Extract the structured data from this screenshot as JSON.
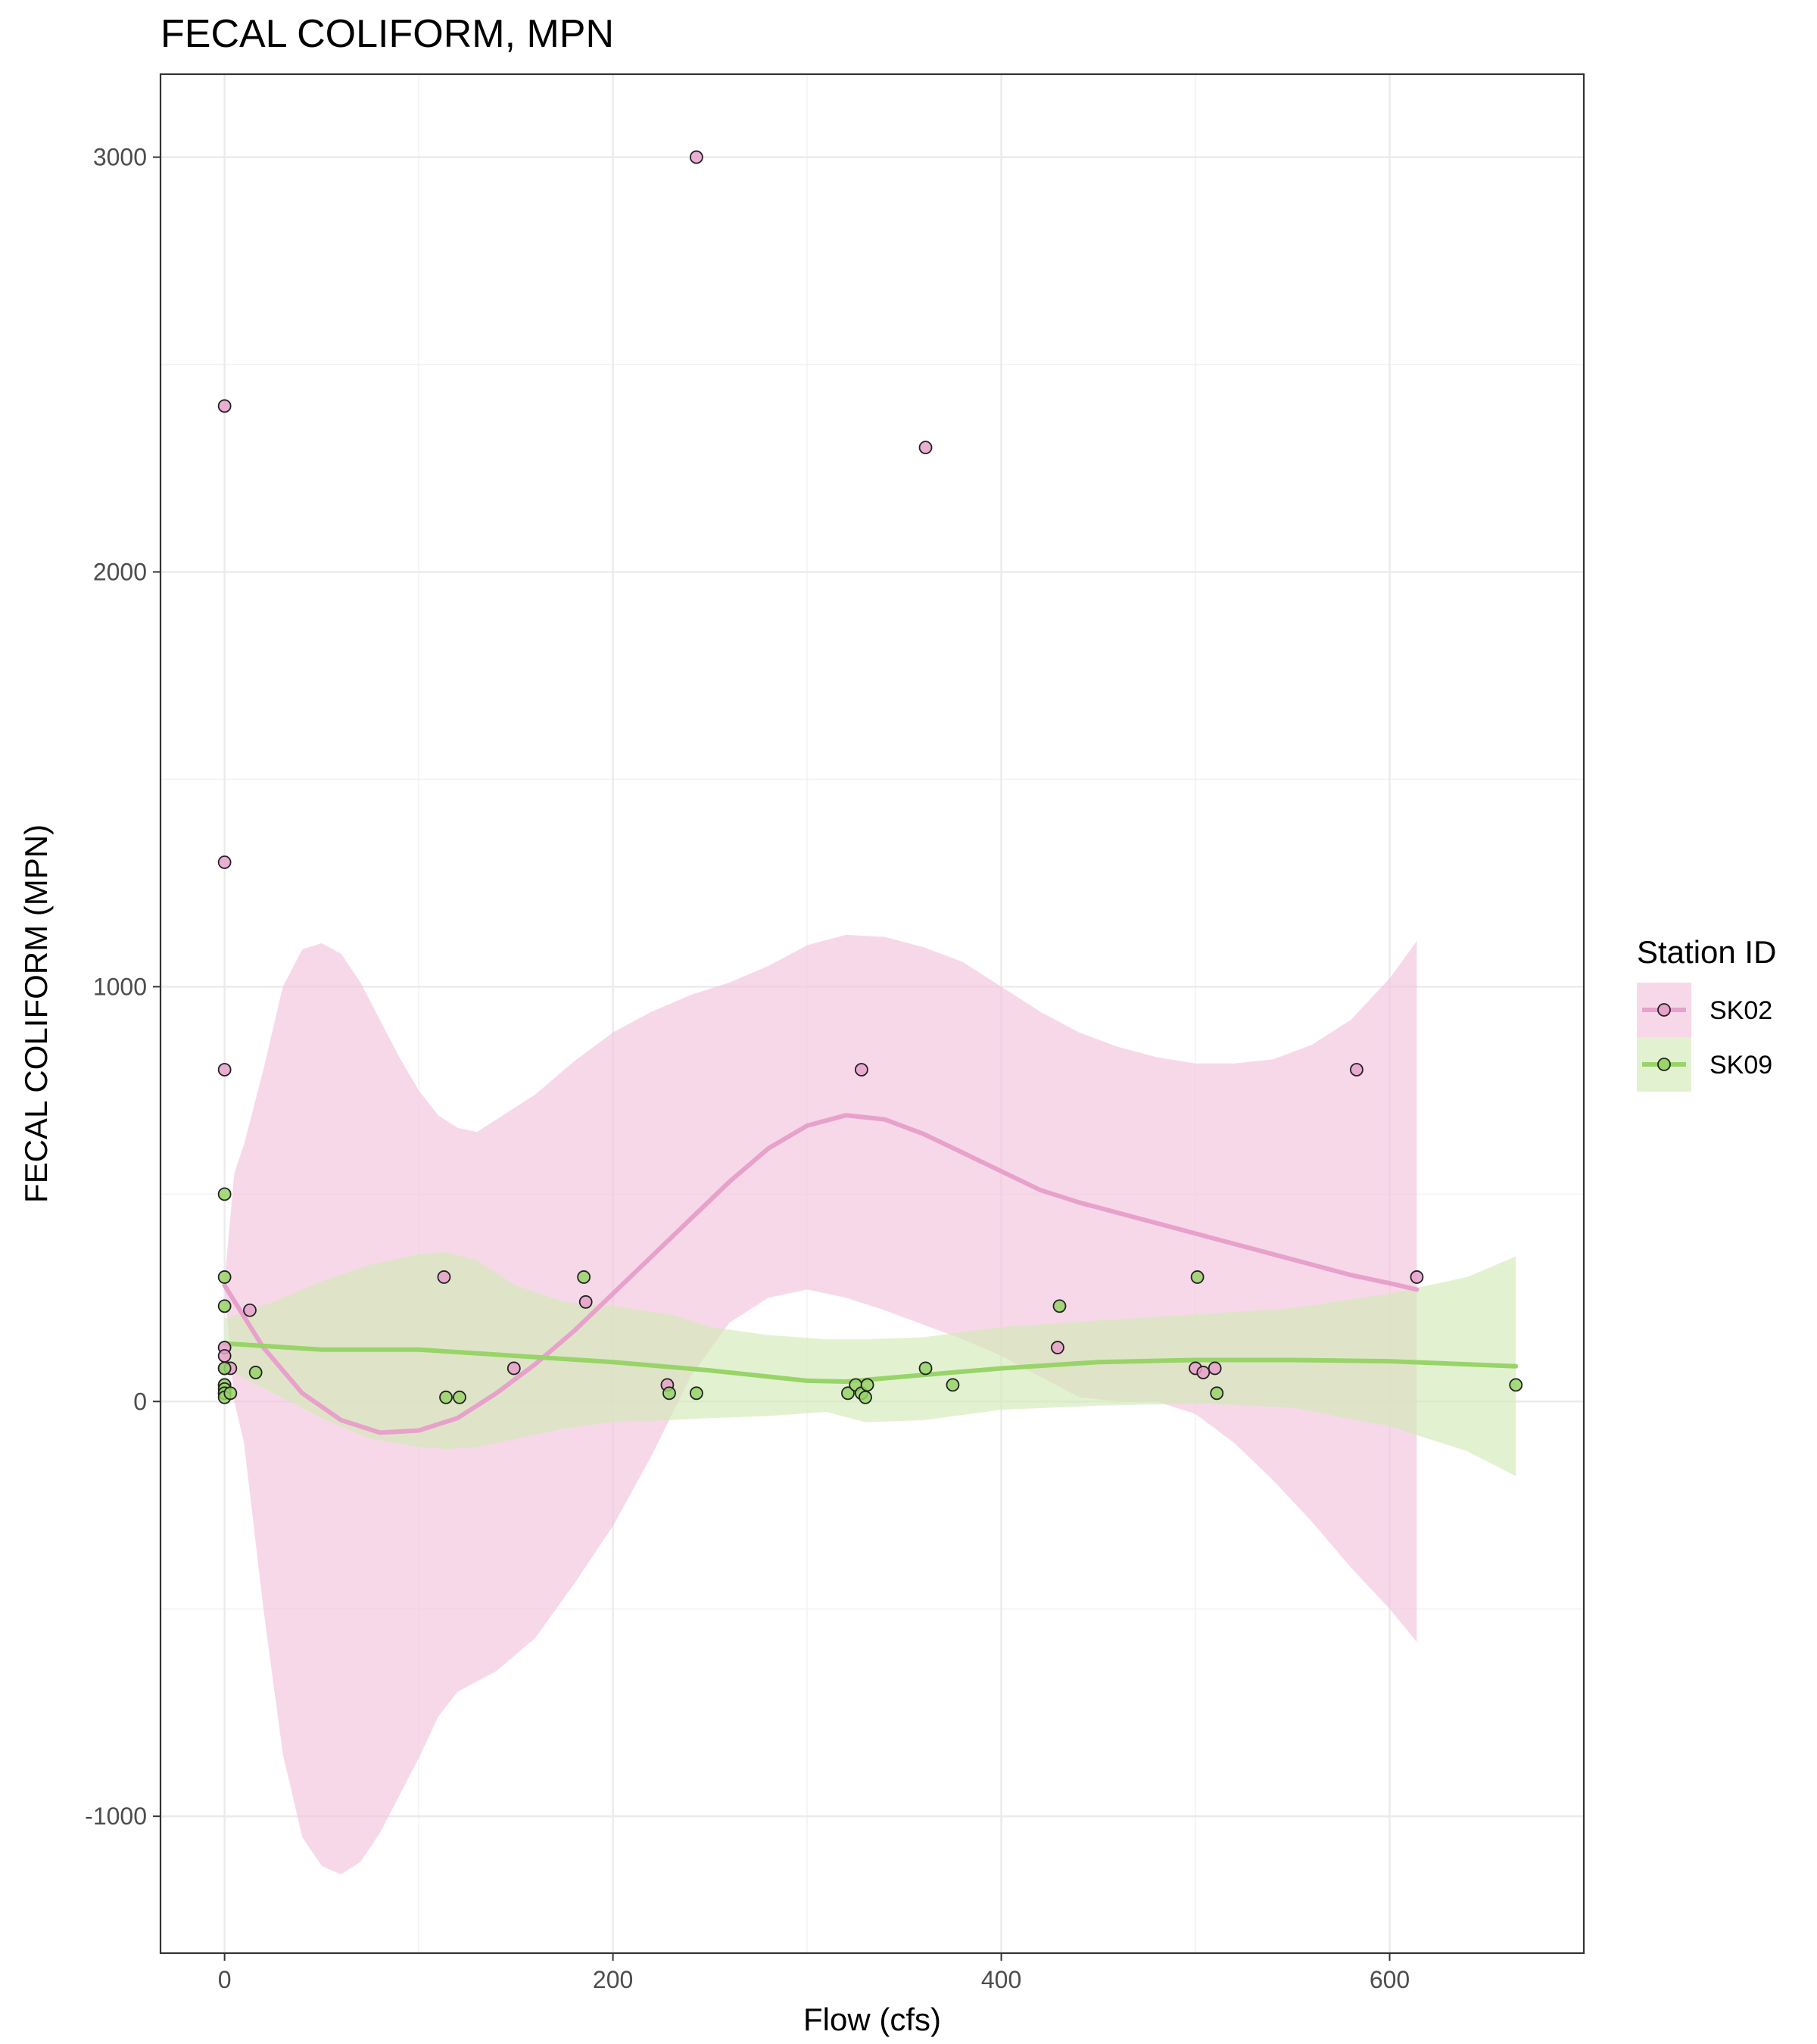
{
  "chart_data": {
    "type": "scatter",
    "title": "FECAL COLIFORM, MPN",
    "xlabel": "Flow (cfs)",
    "ylabel": "FECAL COLIFORM (MPN)",
    "xlim": [
      -33,
      700
    ],
    "ylim": [
      -1330,
      3200
    ],
    "x_ticks": [
      0,
      200,
      400,
      600
    ],
    "y_ticks": [
      -1000,
      0,
      1000,
      2000,
      3000
    ],
    "x_tick_labels": [
      "0",
      "200",
      "400",
      "600"
    ],
    "y_tick_labels": [
      "-1000",
      "0",
      "1000",
      "2000",
      "3000"
    ],
    "grid": true,
    "legend": {
      "title": "Station ID",
      "position": "right"
    },
    "series": [
      {
        "name": "SK02",
        "color": "#e7a1cb",
        "band_color": "#f2c3dd",
        "points": [
          [
            0,
            2400
          ],
          [
            0,
            1300
          ],
          [
            0,
            800
          ],
          [
            0,
            130
          ],
          [
            0,
            110
          ],
          [
            0,
            80
          ],
          [
            0,
            40
          ],
          [
            0,
            20
          ],
          [
            3,
            80
          ],
          [
            13,
            220
          ],
          [
            113,
            300
          ],
          [
            149,
            80
          ],
          [
            186,
            240
          ],
          [
            228,
            40
          ],
          [
            243,
            3000
          ],
          [
            328,
            800
          ],
          [
            361,
            2300
          ],
          [
            429,
            130
          ],
          [
            500,
            80
          ],
          [
            504,
            70
          ],
          [
            510,
            80
          ],
          [
            583,
            800
          ],
          [
            614,
            300
          ]
        ],
        "smooth": [
          [
            0,
            280
          ],
          [
            20,
            130
          ],
          [
            40,
            20
          ],
          [
            60,
            -45
          ],
          [
            80,
            -75
          ],
          [
            100,
            -70
          ],
          [
            120,
            -40
          ],
          [
            140,
            20
          ],
          [
            160,
            90
          ],
          [
            180,
            170
          ],
          [
            200,
            260
          ],
          [
            220,
            350
          ],
          [
            240,
            440
          ],
          [
            260,
            530
          ],
          [
            280,
            610
          ],
          [
            300,
            665
          ],
          [
            320,
            690
          ],
          [
            340,
            680
          ],
          [
            360,
            645
          ],
          [
            380,
            600
          ],
          [
            400,
            555
          ],
          [
            420,
            510
          ],
          [
            440,
            480
          ],
          [
            460,
            455
          ],
          [
            480,
            430
          ],
          [
            500,
            405
          ],
          [
            520,
            380
          ],
          [
            540,
            355
          ],
          [
            560,
            330
          ],
          [
            580,
            305
          ],
          [
            600,
            285
          ],
          [
            614,
            270
          ]
        ],
        "upper": [
          [
            0,
            290
          ],
          [
            5,
            550
          ],
          [
            10,
            620
          ],
          [
            20,
            800
          ],
          [
            30,
            1000
          ],
          [
            40,
            1090
          ],
          [
            50,
            1105
          ],
          [
            60,
            1080
          ],
          [
            70,
            1010
          ],
          [
            80,
            920
          ],
          [
            90,
            830
          ],
          [
            100,
            750
          ],
          [
            110,
            690
          ],
          [
            120,
            660
          ],
          [
            130,
            650
          ],
          [
            140,
            680
          ],
          [
            160,
            740
          ],
          [
            180,
            820
          ],
          [
            200,
            890
          ],
          [
            220,
            940
          ],
          [
            240,
            980
          ],
          [
            260,
            1010
          ],
          [
            280,
            1050
          ],
          [
            300,
            1100
          ],
          [
            320,
            1125
          ],
          [
            340,
            1120
          ],
          [
            360,
            1095
          ],
          [
            380,
            1060
          ],
          [
            400,
            1000
          ],
          [
            420,
            940
          ],
          [
            440,
            890
          ],
          [
            460,
            855
          ],
          [
            480,
            830
          ],
          [
            500,
            815
          ],
          [
            520,
            815
          ],
          [
            540,
            825
          ],
          [
            560,
            860
          ],
          [
            580,
            920
          ],
          [
            600,
            1020
          ],
          [
            614,
            1110
          ]
        ],
        "lower": [
          [
            0,
            270
          ],
          [
            5,
            0
          ],
          [
            10,
            -100
          ],
          [
            20,
            -500
          ],
          [
            30,
            -850
          ],
          [
            40,
            -1050
          ],
          [
            50,
            -1120
          ],
          [
            60,
            -1140
          ],
          [
            70,
            -1110
          ],
          [
            80,
            -1040
          ],
          [
            90,
            -950
          ],
          [
            100,
            -860
          ],
          [
            110,
            -760
          ],
          [
            120,
            -700
          ],
          [
            140,
            -650
          ],
          [
            160,
            -570
          ],
          [
            180,
            -440
          ],
          [
            200,
            -300
          ],
          [
            220,
            -130
          ],
          [
            240,
            60
          ],
          [
            260,
            190
          ],
          [
            280,
            250
          ],
          [
            300,
            270
          ],
          [
            320,
            250
          ],
          [
            340,
            220
          ],
          [
            360,
            185
          ],
          [
            380,
            150
          ],
          [
            400,
            110
          ],
          [
            420,
            60
          ],
          [
            440,
            10
          ],
          [
            460,
            0
          ],
          [
            480,
            0
          ],
          [
            500,
            -30
          ],
          [
            520,
            -100
          ],
          [
            540,
            -190
          ],
          [
            560,
            -290
          ],
          [
            580,
            -400
          ],
          [
            600,
            -500
          ],
          [
            614,
            -580
          ]
        ]
      },
      {
        "name": "SK09",
        "color": "#98d468",
        "band_color": "#d2ebb9",
        "points": [
          [
            0,
            500
          ],
          [
            0,
            300
          ],
          [
            0,
            230
          ],
          [
            0,
            80
          ],
          [
            0,
            40
          ],
          [
            0,
            30
          ],
          [
            0,
            20
          ],
          [
            0,
            10
          ],
          [
            3,
            20
          ],
          [
            16,
            70
          ],
          [
            114,
            10
          ],
          [
            121,
            10
          ],
          [
            185,
            300
          ],
          [
            229,
            20
          ],
          [
            243,
            20
          ],
          [
            321,
            20
          ],
          [
            325,
            40
          ],
          [
            328,
            20
          ],
          [
            330,
            10
          ],
          [
            331,
            40
          ],
          [
            361,
            80
          ],
          [
            375,
            40
          ],
          [
            430,
            230
          ],
          [
            501,
            300
          ],
          [
            511,
            20
          ],
          [
            665,
            40
          ]
        ],
        "smooth": [
          [
            0,
            140
          ],
          [
            50,
            125
          ],
          [
            100,
            125
          ],
          [
            150,
            110
          ],
          [
            200,
            95
          ],
          [
            250,
            75
          ],
          [
            300,
            50
          ],
          [
            320,
            48
          ],
          [
            350,
            60
          ],
          [
            400,
            80
          ],
          [
            450,
            95
          ],
          [
            500,
            100
          ],
          [
            550,
            100
          ],
          [
            600,
            97
          ],
          [
            665,
            85
          ]
        ],
        "upper": [
          [
            0,
            200
          ],
          [
            25,
            240
          ],
          [
            50,
            290
          ],
          [
            75,
            330
          ],
          [
            100,
            355
          ],
          [
            115,
            360
          ],
          [
            130,
            340
          ],
          [
            150,
            280
          ],
          [
            175,
            240
          ],
          [
            200,
            230
          ],
          [
            230,
            210
          ],
          [
            250,
            180
          ],
          [
            280,
            160
          ],
          [
            310,
            150
          ],
          [
            330,
            150
          ],
          [
            360,
            155
          ],
          [
            400,
            180
          ],
          [
            450,
            195
          ],
          [
            500,
            210
          ],
          [
            550,
            225
          ],
          [
            600,
            260
          ],
          [
            640,
            300
          ],
          [
            665,
            350
          ]
        ],
        "lower": [
          [
            0,
            80
          ],
          [
            25,
            20
          ],
          [
            50,
            -40
          ],
          [
            75,
            -90
          ],
          [
            100,
            -110
          ],
          [
            115,
            -115
          ],
          [
            130,
            -110
          ],
          [
            150,
            -90
          ],
          [
            175,
            -65
          ],
          [
            200,
            -50
          ],
          [
            230,
            -45
          ],
          [
            250,
            -40
          ],
          [
            280,
            -35
          ],
          [
            310,
            -25
          ],
          [
            330,
            -50
          ],
          [
            360,
            -45
          ],
          [
            400,
            -20
          ],
          [
            450,
            -10
          ],
          [
            500,
            -5
          ],
          [
            550,
            -15
          ],
          [
            600,
            -60
          ],
          [
            640,
            -120
          ],
          [
            665,
            -180
          ]
        ]
      }
    ]
  }
}
